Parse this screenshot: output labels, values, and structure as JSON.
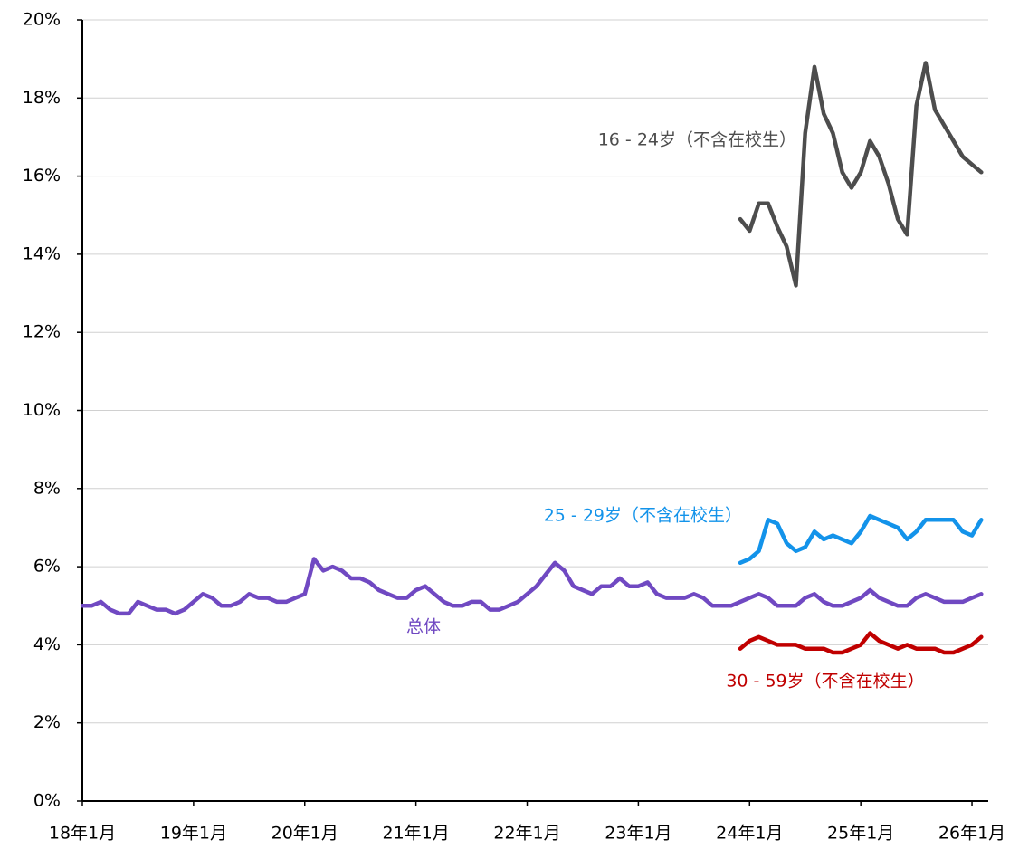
{
  "chart_data": {
    "type": "line",
    "categories": [
      "18年1月",
      null,
      null,
      null,
      null,
      null,
      null,
      null,
      null,
      null,
      null,
      null,
      "19年1月",
      null,
      null,
      null,
      null,
      null,
      null,
      null,
      null,
      null,
      null,
      null,
      "20年1月",
      null,
      null,
      null,
      null,
      null,
      null,
      null,
      null,
      null,
      null,
      null,
      "21年1月",
      null,
      null,
      null,
      null,
      null,
      null,
      null,
      null,
      null,
      null,
      null,
      "22年1月",
      null,
      null,
      null,
      null,
      null,
      null,
      null,
      null,
      null,
      null,
      null,
      "23年1月",
      null,
      null,
      null,
      null,
      null,
      null,
      null,
      null,
      null,
      null,
      null,
      "24年1月",
      null,
      null,
      null,
      null,
      null,
      null,
      null,
      null,
      null,
      null,
      null,
      "25年1月",
      null,
      null,
      null,
      null,
      null,
      null,
      null,
      null,
      null,
      null,
      null,
      "26年1月",
      null
    ],
    "series": [
      {
        "name": "总体",
        "color": "#7049c2",
        "values": [
          5.0,
          5.0,
          5.1,
          4.9,
          4.8,
          4.8,
          5.1,
          5.0,
          4.9,
          4.9,
          4.8,
          4.9,
          5.1,
          5.3,
          5.2,
          5.0,
          5.0,
          5.1,
          5.3,
          5.2,
          5.2,
          5.1,
          5.1,
          5.2,
          5.3,
          6.2,
          5.9,
          6.0,
          5.9,
          5.7,
          5.7,
          5.6,
          5.4,
          5.3,
          5.2,
          5.2,
          5.4,
          5.5,
          5.3,
          5.1,
          5.0,
          5.0,
          5.1,
          5.1,
          4.9,
          4.9,
          5.0,
          5.1,
          5.3,
          5.5,
          5.8,
          6.1,
          5.9,
          5.5,
          5.4,
          5.3,
          5.5,
          5.5,
          5.7,
          5.5,
          5.5,
          5.6,
          5.3,
          5.2,
          5.2,
          5.2,
          5.3,
          5.2,
          5.0,
          5.0,
          5.0,
          5.1,
          5.2,
          5.3,
          5.2,
          5.0,
          5.0,
          5.0,
          5.2,
          5.3,
          5.1,
          5.0,
          5.0,
          5.1,
          5.2,
          5.4,
          5.2,
          5.1,
          5.0,
          5.0,
          5.2,
          5.3,
          5.2,
          5.1,
          5.1,
          5.1,
          5.2,
          5.3
        ]
      },
      {
        "name": "16 - 24岁（不含在校生）",
        "color": "#4d4d4d",
        "values": [
          null,
          null,
          null,
          null,
          null,
          null,
          null,
          null,
          null,
          null,
          null,
          null,
          null,
          null,
          null,
          null,
          null,
          null,
          null,
          null,
          null,
          null,
          null,
          null,
          null,
          null,
          null,
          null,
          null,
          null,
          null,
          null,
          null,
          null,
          null,
          null,
          null,
          null,
          null,
          null,
          null,
          null,
          null,
          null,
          null,
          null,
          null,
          null,
          null,
          null,
          null,
          null,
          null,
          null,
          null,
          null,
          null,
          null,
          null,
          null,
          null,
          null,
          null,
          null,
          null,
          null,
          null,
          null,
          null,
          null,
          null,
          14.9,
          14.6,
          15.3,
          15.3,
          14.7,
          14.2,
          13.2,
          17.1,
          18.8,
          17.6,
          17.1,
          16.1,
          15.7,
          16.1,
          16.9,
          16.5,
          15.8,
          14.9,
          14.5,
          17.8,
          18.9,
          17.7,
          17.3,
          16.9,
          16.5,
          16.3,
          16.1
        ]
      },
      {
        "name": "25 - 29岁（不含在校生）",
        "color": "#1393ea",
        "values": [
          null,
          null,
          null,
          null,
          null,
          null,
          null,
          null,
          null,
          null,
          null,
          null,
          null,
          null,
          null,
          null,
          null,
          null,
          null,
          null,
          null,
          null,
          null,
          null,
          null,
          null,
          null,
          null,
          null,
          null,
          null,
          null,
          null,
          null,
          null,
          null,
          null,
          null,
          null,
          null,
          null,
          null,
          null,
          null,
          null,
          null,
          null,
          null,
          null,
          null,
          null,
          null,
          null,
          null,
          null,
          null,
          null,
          null,
          null,
          null,
          null,
          null,
          null,
          null,
          null,
          null,
          null,
          null,
          null,
          null,
          null,
          6.1,
          6.2,
          6.4,
          7.2,
          7.1,
          6.6,
          6.4,
          6.5,
          6.9,
          6.7,
          6.8,
          6.7,
          6.6,
          6.9,
          7.3,
          7.2,
          7.1,
          7.0,
          6.7,
          6.9,
          7.2,
          7.2,
          7.2,
          7.2,
          6.9,
          6.8,
          7.2
        ]
      },
      {
        "name": "30 - 59岁（不含在校生）",
        "color": "#c00000",
        "values": [
          null,
          null,
          null,
          null,
          null,
          null,
          null,
          null,
          null,
          null,
          null,
          null,
          null,
          null,
          null,
          null,
          null,
          null,
          null,
          null,
          null,
          null,
          null,
          null,
          null,
          null,
          null,
          null,
          null,
          null,
          null,
          null,
          null,
          null,
          null,
          null,
          null,
          null,
          null,
          null,
          null,
          null,
          null,
          null,
          null,
          null,
          null,
          null,
          null,
          null,
          null,
          null,
          null,
          null,
          null,
          null,
          null,
          null,
          null,
          null,
          null,
          null,
          null,
          null,
          null,
          null,
          null,
          null,
          null,
          null,
          null,
          3.9,
          4.1,
          4.2,
          4.1,
          4.0,
          4.0,
          4.0,
          3.9,
          3.9,
          3.9,
          3.8,
          3.8,
          3.9,
          4.0,
          4.3,
          4.1,
          4.0,
          3.9,
          4.0,
          3.9,
          3.9,
          3.9,
          3.8,
          3.8,
          3.9,
          4.0,
          4.2
        ]
      }
    ],
    "ylim": [
      0,
      20
    ],
    "yticks": [
      {
        "value": 0,
        "label": "0%"
      },
      {
        "value": 2,
        "label": "2%"
      },
      {
        "value": 4,
        "label": "4%"
      },
      {
        "value": 6,
        "label": "6%"
      },
      {
        "value": 8,
        "label": "8%"
      },
      {
        "value": 10,
        "label": "10%"
      },
      {
        "value": 12,
        "label": "12%"
      },
      {
        "value": 14,
        "label": "14%"
      },
      {
        "value": 16,
        "label": "16%"
      },
      {
        "value": 18,
        "label": "18%"
      },
      {
        "value": 20,
        "label": "20%"
      }
    ],
    "grid": true
  }
}
